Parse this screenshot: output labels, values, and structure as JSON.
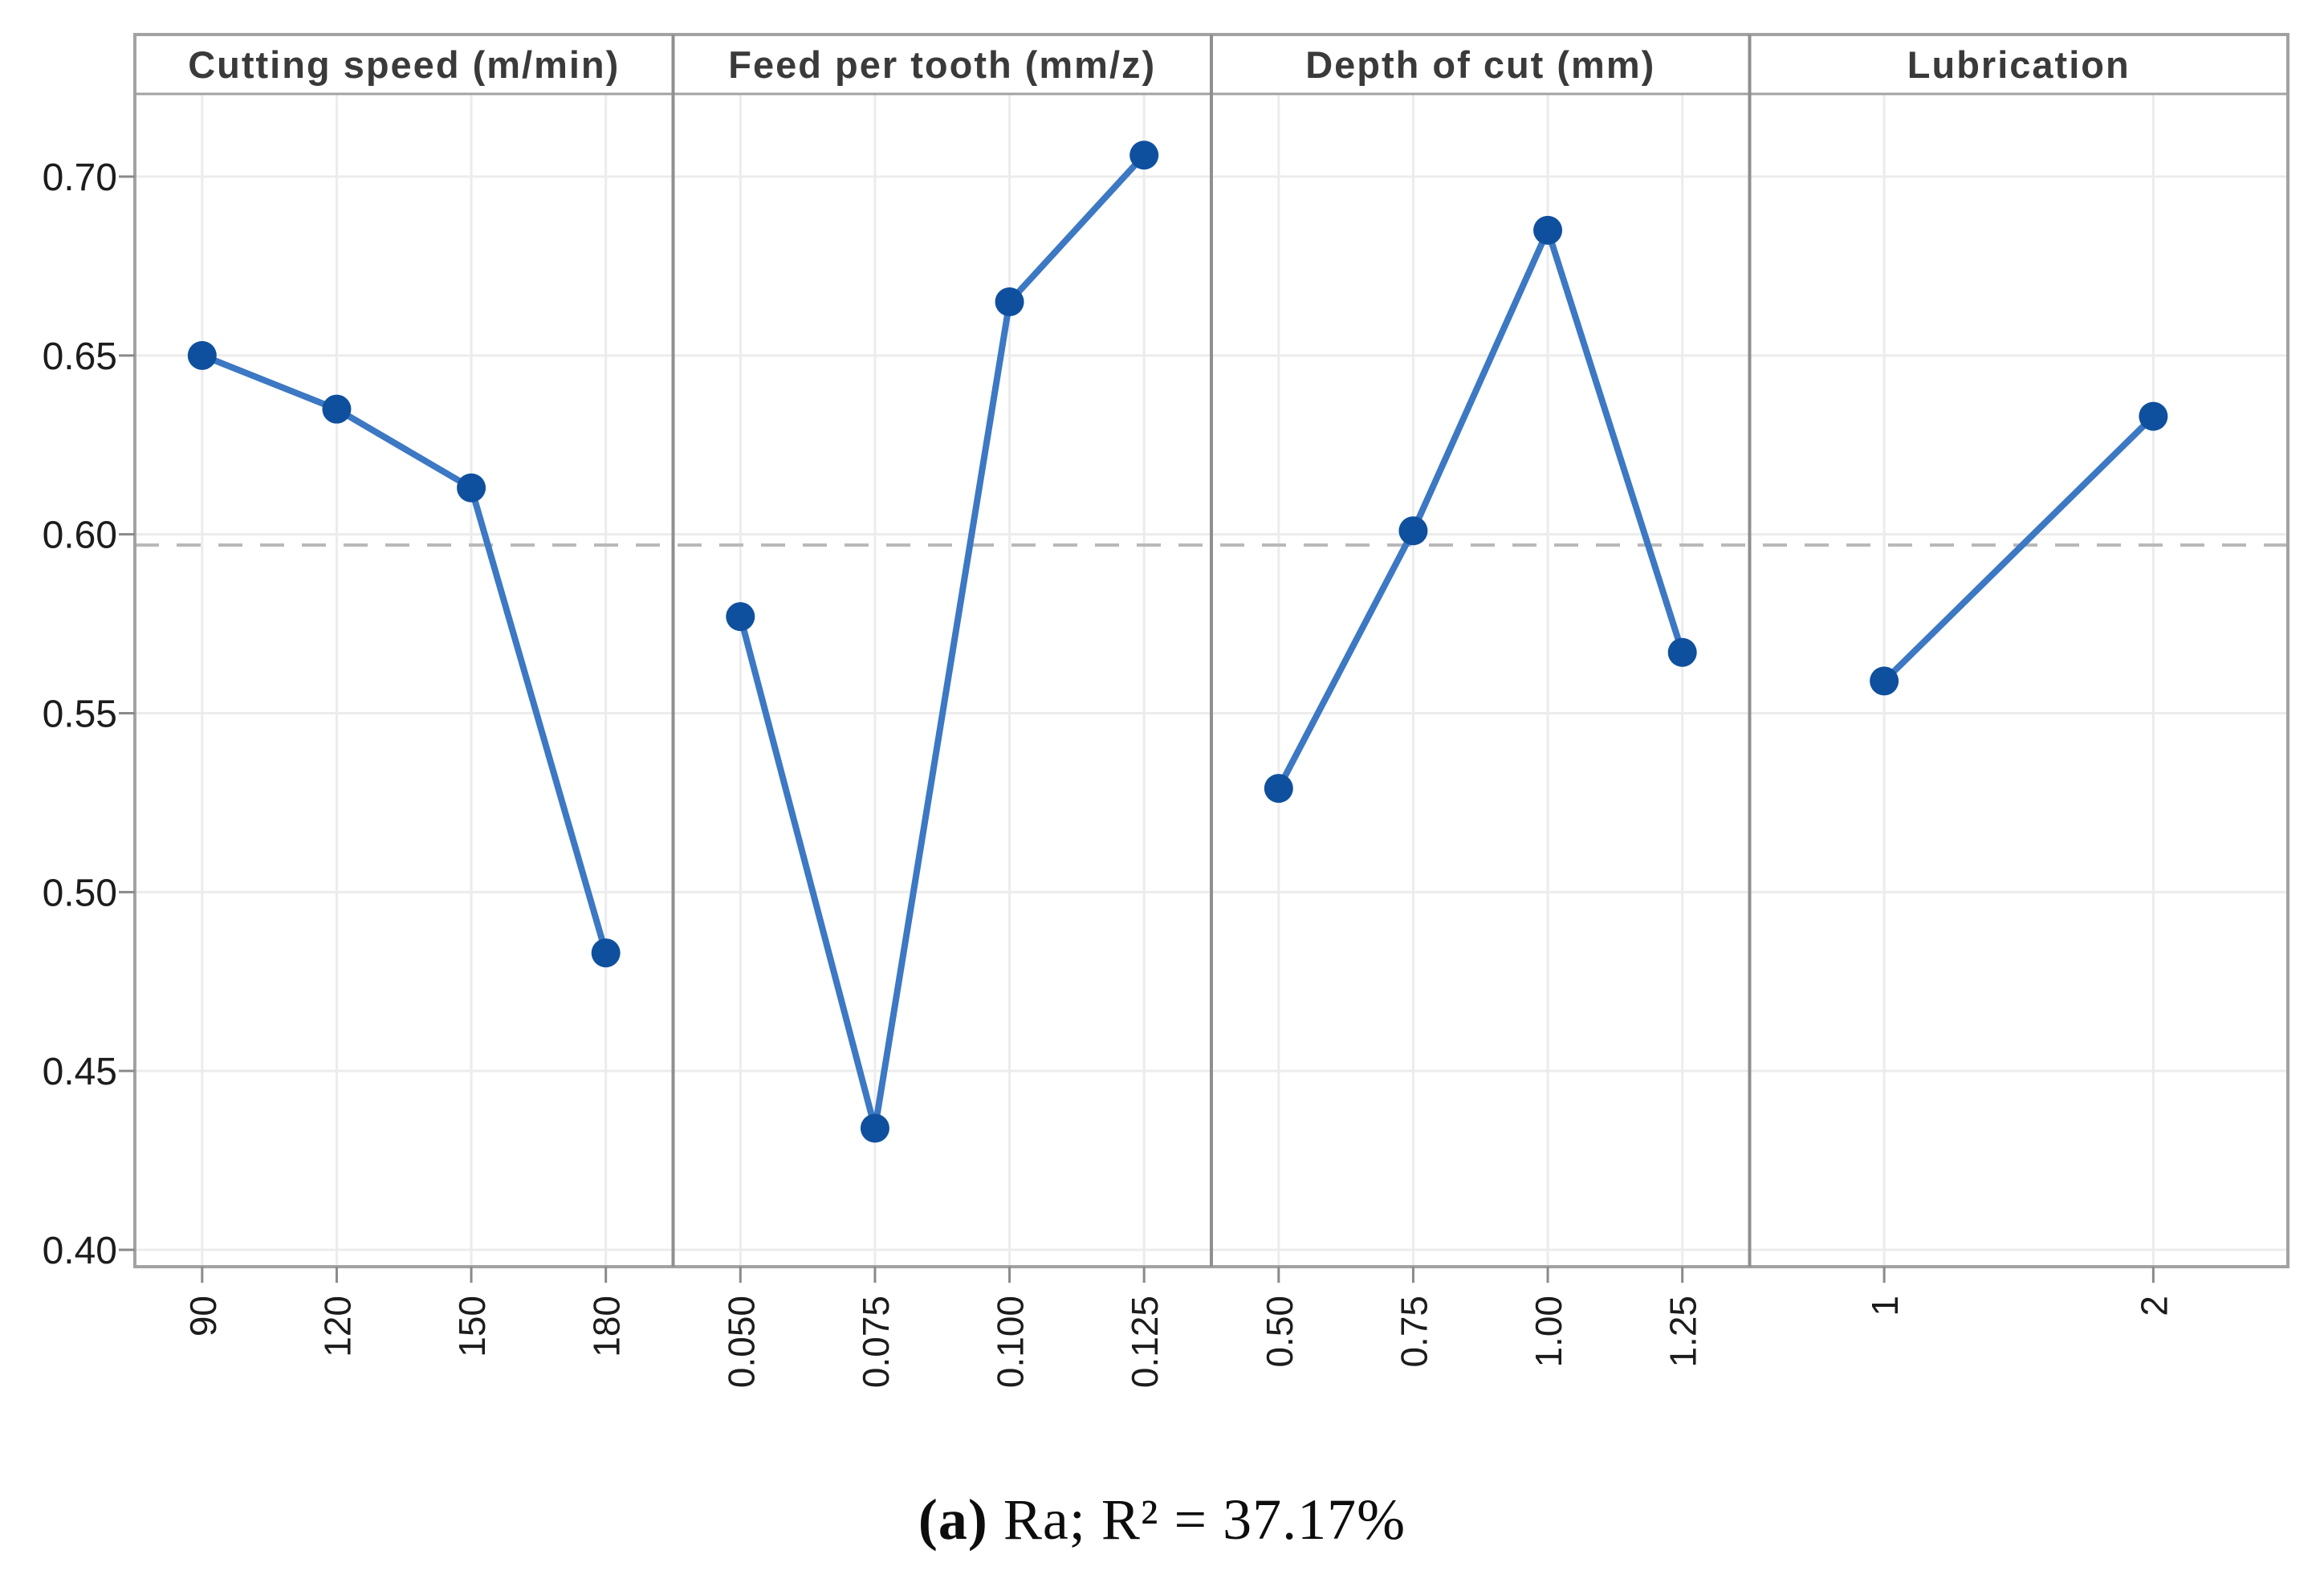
{
  "chart_data": {
    "type": "line",
    "title": "",
    "ylabel": "",
    "xlabel": "",
    "ylim": [
      0.395,
      0.723
    ],
    "yticks": [
      "0.70",
      "0.65",
      "0.60",
      "0.55",
      "0.50",
      "0.45",
      "0.40"
    ],
    "ytick_values": [
      0.7,
      0.65,
      0.6,
      0.55,
      0.5,
      0.45,
      0.4
    ],
    "grid": true,
    "legend": false,
    "reference_mean": 0.597,
    "panels": [
      {
        "label": "Cutting speed (m/min)",
        "categories": [
          "90",
          "120",
          "150",
          "180"
        ],
        "values": [
          0.65,
          0.635,
          0.613,
          0.483
        ]
      },
      {
        "label": "Feed per tooth (mm/z)",
        "categories": [
          "0.050",
          "0.075",
          "0.100",
          "0.125"
        ],
        "values": [
          0.577,
          0.434,
          0.665,
          0.706
        ]
      },
      {
        "label": "Depth of cut (mm)",
        "categories": [
          "0.50",
          "0.75",
          "1.00",
          "1.25"
        ],
        "values": [
          0.529,
          0.601,
          0.685,
          0.567
        ]
      },
      {
        "label": "Lubrication",
        "categories": [
          "1",
          "2"
        ],
        "values": [
          0.559,
          0.633
        ]
      }
    ]
  },
  "caption": {
    "open": "(",
    "label": "a",
    "close": ")",
    "text": " Ra; R² = 37.17%"
  },
  "colors": {
    "series_line": "#3c78c3",
    "marker": "#0f509e",
    "reference_line": "#b9b9b9",
    "frame": "#a2a2a2",
    "separator": "#8f8f8f",
    "grid": "#ececec",
    "tick": "#8a8a8a",
    "header_text": "#3a3a3a",
    "tick_text": "#1c1c1c",
    "background": "#ffffff"
  }
}
